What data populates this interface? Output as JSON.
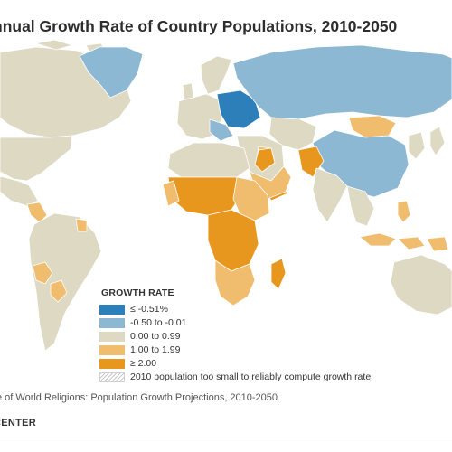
{
  "title": "nnual Growth Rate of Country Populations, 2010-2050",
  "legend": {
    "title": "GROWTH RATE",
    "items": [
      {
        "label": "≤ -0.51%",
        "color": "#2c7fb8",
        "hatched": false
      },
      {
        "label": "-0.50 to -0.01",
        "color": "#8db8d3",
        "hatched": false
      },
      {
        "label": "0.00 to 0.99",
        "color": "#ddd9c3",
        "hatched": false
      },
      {
        "label": "1.00 to 1.99",
        "color": "#f0bc6e",
        "hatched": false
      },
      {
        "label": "≥ 2.00",
        "color": "#e8971e",
        "hatched": false
      },
      {
        "label": "2010 population too small to reliably compute growth rate",
        "color": "#ffffff",
        "hatched": true
      }
    ]
  },
  "map": {
    "ocean_color": "#ffffff",
    "border_color": "#ffffff"
  },
  "source": "e of World Religions: Population Growth Projections, 2010-2050",
  "credit": "CENTER"
}
